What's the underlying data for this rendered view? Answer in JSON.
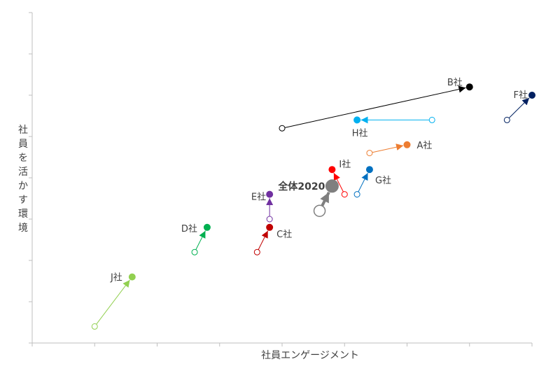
{
  "chart_data": {
    "type": "scatter",
    "xlabel": "社員エンゲージメント",
    "ylabel": "社員を活かす環境",
    "xlim": [
      0,
      8
    ],
    "ylim": [
      0,
      8
    ],
    "grid": false,
    "series": [
      {
        "name": "A社",
        "color": "#ED7D31",
        "from": [
          5.4,
          4.6
        ],
        "to": [
          6.0,
          4.8
        ]
      },
      {
        "name": "B社",
        "color": "#000000",
        "from": [
          4.0,
          5.2
        ],
        "to": [
          7.0,
          6.2
        ]
      },
      {
        "name": "C社",
        "color": "#C00000",
        "from": [
          3.6,
          2.2
        ],
        "to": [
          3.8,
          2.8
        ]
      },
      {
        "name": "D社",
        "color": "#00B050",
        "from": [
          2.6,
          2.2
        ],
        "to": [
          2.8,
          2.8
        ]
      },
      {
        "name": "E社",
        "color": "#7030A0",
        "from": [
          3.8,
          3.0
        ],
        "to": [
          3.8,
          3.6
        ]
      },
      {
        "name": "F社",
        "color": "#002060",
        "from": [
          7.6,
          5.4
        ],
        "to": [
          8.0,
          6.0
        ]
      },
      {
        "name": "G社",
        "color": "#0070C0",
        "from": [
          5.2,
          3.6
        ],
        "to": [
          5.4,
          4.2
        ]
      },
      {
        "name": "H社",
        "color": "#00B0F0",
        "from": [
          6.4,
          5.4
        ],
        "to": [
          5.2,
          5.4
        ]
      },
      {
        "name": "I社",
        "color": "#FF0000",
        "from": [
          5.0,
          3.6
        ],
        "to": [
          4.8,
          4.2
        ]
      },
      {
        "name": "J社",
        "color": "#92D050",
        "from": [
          1.0,
          0.4
        ],
        "to": [
          1.6,
          1.6
        ]
      },
      {
        "name": "全体2020",
        "color": "#7F7F7F",
        "from": [
          4.6,
          3.2
        ],
        "to": [
          4.8,
          3.8
        ],
        "emphasis": true
      }
    ]
  }
}
